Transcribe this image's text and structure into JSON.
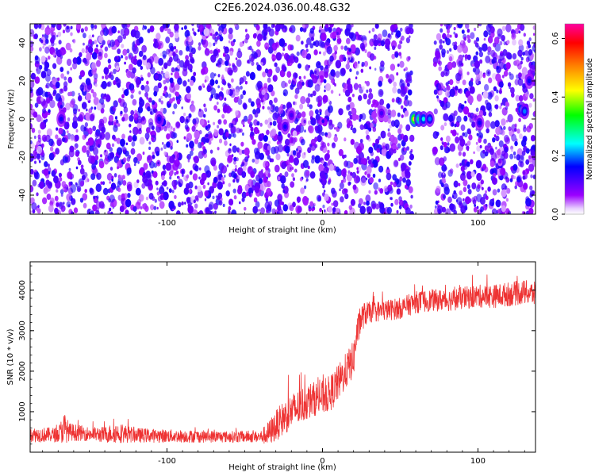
{
  "title": "C2E6.2024.036.00.48.G32",
  "chart_data": [
    {
      "type": "heatmap",
      "title": "C2E6.2024.036.00.48.G32",
      "xlabel": "Height of straight line (km)",
      "ylabel": "Frequency (Hz)",
      "xlim": [
        -188,
        137
      ],
      "ylim": [
        -50,
        50
      ],
      "x_ticks": [
        "-100",
        "0",
        "100"
      ],
      "y_ticks": [
        "-40",
        "-20",
        "0",
        "20",
        "40"
      ],
      "colorbar": {
        "label": "Normalized spectral amplitude",
        "range": [
          0,
          0.65
        ],
        "ticks": [
          "0.0",
          "0.2",
          "0.4",
          "0.6"
        ],
        "colors": [
          "#ffffff",
          "#9b00ff",
          "#0000ff",
          "#00ffff",
          "#00ff00",
          "#ffff00",
          "#ff8000",
          "#ff0000",
          "#ff00a0"
        ]
      },
      "grid": false,
      "background_level": "~0.05-0.15 (purple speckle noise)",
      "hotspots": [
        {
          "x": 59,
          "y": 0,
          "value": 0.45
        },
        {
          "x": 62,
          "y": 0,
          "value": 0.3
        },
        {
          "x": 65,
          "y": 0,
          "value": 0.25
        },
        {
          "x": 69,
          "y": 0,
          "value": 0.2
        },
        {
          "x": 128,
          "y": 5,
          "value": 0.25
        },
        {
          "x": 130,
          "y": 4,
          "value": 0.2
        },
        {
          "x": 133,
          "y": 20,
          "value": 0.15
        },
        {
          "x": -168,
          "y": 0,
          "value": 0.15
        },
        {
          "x": -105,
          "y": 0,
          "value": 0.15
        },
        {
          "x": -24,
          "y": -4,
          "value": 0.15
        },
        {
          "x": -20,
          "y": 2,
          "value": 0.12
        },
        {
          "x": 38,
          "y": 3,
          "value": 0.12
        },
        {
          "x": 101,
          "y": -2,
          "value": 0.15
        }
      ],
      "blank_regions": [
        {
          "x": [
            58,
            72
          ],
          "y": [
            -50,
            50
          ]
        },
        {
          "x": [
            120,
            129
          ],
          "y": [
            -50,
            -38
          ]
        }
      ]
    },
    {
      "type": "line",
      "xlabel": "Height of straight line (km)",
      "ylabel": "SNR (10 * v/v)",
      "xlim": [
        -188,
        137
      ],
      "ylim": [
        0,
        4700
      ],
      "x_ticks": [
        "-100",
        "0",
        "100"
      ],
      "y_ticks": [
        "1000",
        "2000",
        "3000",
        "4000"
      ],
      "grid": false,
      "series": [
        {
          "color": "#ee3333",
          "x": [
            -188,
            -170,
            -166,
            -163,
            -150,
            -140,
            -133,
            -120,
            -100,
            -80,
            -60,
            -40,
            -35,
            -30,
            -25,
            -20,
            -15,
            -10,
            -5,
            0,
            5,
            10,
            15,
            20,
            22,
            25,
            27,
            30,
            40,
            50,
            60,
            70,
            80,
            90,
            100,
            110,
            120,
            130,
            137
          ],
          "values": [
            430,
            430,
            600,
            500,
            450,
            430,
            480,
            420,
            400,
            390,
            380,
            380,
            450,
            650,
            850,
            1000,
            1100,
            1250,
            1320,
            1350,
            1450,
            1700,
            2000,
            2300,
            2900,
            3300,
            3400,
            3450,
            3500,
            3550,
            3700,
            3750,
            3750,
            3800,
            3850,
            3850,
            3900,
            3950,
            3900
          ],
          "noise_amplitude": [
            180,
            180,
            400,
            220,
            170,
            200,
            250,
            180,
            160,
            150,
            140,
            140,
            300,
            380,
            420,
            450,
            450,
            450,
            420,
            420,
            450,
            450,
            450,
            450,
            400,
            350,
            300,
            260,
            260,
            260,
            270,
            270,
            270,
            280,
            280,
            290,
            300,
            300,
            300
          ]
        }
      ]
    }
  ]
}
